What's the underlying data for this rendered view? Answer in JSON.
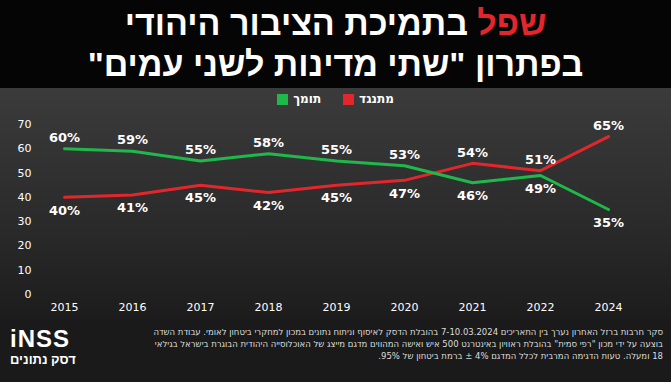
{
  "chart_data": {
    "type": "line",
    "title": "שפל בתמיכת הציבור היהודי",
    "subtitle": "בפתרון \"שתי מדינות לשני עמים\"",
    "categories": [
      "2015",
      "2016",
      "2017",
      "2018",
      "2019",
      "2020",
      "2021",
      "2022",
      "2024"
    ],
    "series": [
      {
        "name": "מתנגד",
        "color": "#e3262b",
        "values": [
          40,
          41,
          45,
          42,
          45,
          47,
          54,
          51,
          65
        ],
        "value_labels": [
          "40%",
          "41%",
          "45%",
          "42%",
          "45%",
          "47%",
          "54%",
          "51%",
          "65%"
        ]
      },
      {
        "name": "תומך",
        "color": "#1fb84a",
        "values": [
          60,
          59,
          55,
          58,
          55,
          53,
          46,
          49,
          35
        ],
        "value_labels": [
          "60%",
          "59%",
          "55%",
          "58%",
          "55%",
          "53%",
          "46%",
          "49%",
          "35%"
        ]
      }
    ],
    "ylim": [
      0,
      70
    ],
    "yticks": [
      0,
      10,
      20,
      30,
      40,
      50,
      60,
      70
    ],
    "grid": false,
    "legend": "top",
    "data_labels": true,
    "caption": "סקר חרבות ברזל האחרון נערך בין התאריכים 7-10.03.2024 בהובלת הדסק לאיסוף וניתוח נתונים במכון למחקרי ביטחון לאומי. עבודת השדה בוצעה על ידי מכון \"רפי סמית\" בהובלת ראוויון באינטרנט 500 איש ואישה המהווים מדגם מייצג של האוכלוסייה היהודית הבוגרת בישראל בגילאי 18 ומעלה. טעות הדגימה המרבית לכלל המדגם 4% ± ברמת ביטחון של 95%.",
    "logo": "iNSS",
    "logo_subtitle": "דסק נתונים"
  }
}
